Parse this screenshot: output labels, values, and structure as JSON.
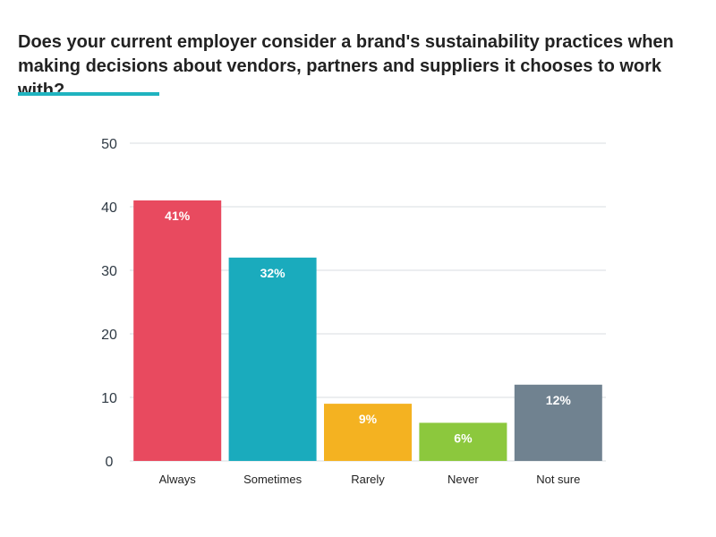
{
  "title": "Does your current employer consider a brand's sustainability practices when making decisions about vendors, partners and suppliers it chooses to work with?",
  "colors": {
    "accent": "#1fb3bf",
    "grid": "#d9dde2"
  },
  "chart_data": {
    "type": "bar",
    "title": "Does your current employer consider a brand's sustainability practices when making decisions about vendors, partners and suppliers it chooses to work with?",
    "categories": [
      "Always",
      "Sometimes",
      "Rarely",
      "Never",
      "Not sure"
    ],
    "values": [
      41,
      32,
      9,
      6,
      12
    ],
    "data_labels": [
      "41%",
      "32%",
      "9%",
      "6%",
      "12%"
    ],
    "bar_colors": [
      "#e84a5f",
      "#1aabbd",
      "#f4b221",
      "#8cc83d",
      "#708290"
    ],
    "yticks": [
      0,
      10,
      20,
      30,
      40,
      50
    ],
    "ylim": [
      0,
      50
    ],
    "xlabel": "",
    "ylabel": "",
    "grid": true,
    "legend": false
  }
}
